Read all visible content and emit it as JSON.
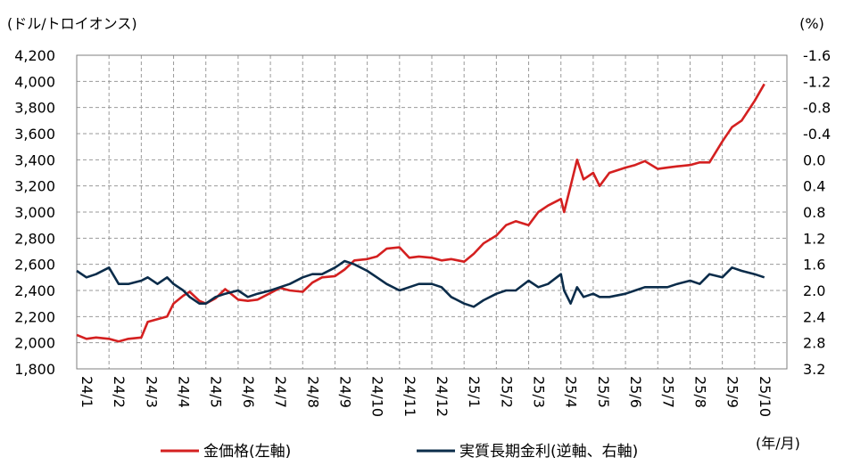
{
  "chart_data": {
    "type": "line",
    "left_unit": "(ドル/トロイオンス)",
    "right_unit": "(%)",
    "x_unit": "(年/月)",
    "x_tick_labels": [
      "24/1",
      "24/2",
      "24/3",
      "24/4",
      "24/5",
      "24/6",
      "24/7",
      "24/8",
      "24/9",
      "24/10",
      "24/11",
      "24/12",
      "25/1",
      "25/2",
      "25/3",
      "25/4",
      "25/5",
      "25/6",
      "25/7",
      "25/8",
      "25/9",
      "25/10"
    ],
    "y_left": {
      "ticks": [
        "1,800",
        "2,000",
        "2,200",
        "2,400",
        "2,600",
        "2,800",
        "3,000",
        "3,200",
        "3,400",
        "3,600",
        "3,800",
        "4,000",
        "4,200"
      ],
      "min": 1800,
      "max": 4200
    },
    "y_right": {
      "ticks": [
        "-1.6",
        "-1.2",
        "-0.8",
        "-0.4",
        "0.0",
        "0.4",
        "0.8",
        "1.2",
        "1.6",
        "2.0",
        "2.4",
        "2.8",
        "3.2"
      ],
      "min": -1.6,
      "max": 3.2,
      "inverted": true
    },
    "grid": true,
    "legend_position": "bottom",
    "series": [
      {
        "name": "金価格(左軸)",
        "axis": "left",
        "color": "#d42020",
        "points": [
          [
            "24/1",
            2060
          ],
          [
            "24/1.3",
            2030
          ],
          [
            "24/1.6",
            2040
          ],
          [
            "24/2",
            2030
          ],
          [
            "24/2.3",
            2010
          ],
          [
            "24/2.6",
            2030
          ],
          [
            "24/3",
            2040
          ],
          [
            "24/3.2",
            2160
          ],
          [
            "24/3.5",
            2180
          ],
          [
            "24/3.8",
            2200
          ],
          [
            "24/4",
            2300
          ],
          [
            "24/4.3",
            2360
          ],
          [
            "24/4.5",
            2390
          ],
          [
            "24/4.8",
            2320
          ],
          [
            "24/5",
            2300
          ],
          [
            "24/5.3",
            2340
          ],
          [
            "24/5.6",
            2410
          ],
          [
            "24/6",
            2330
          ],
          [
            "24/6.3",
            2320
          ],
          [
            "24/6.6",
            2330
          ],
          [
            "24/7",
            2380
          ],
          [
            "24/7.3",
            2420
          ],
          [
            "24/7.6",
            2400
          ],
          [
            "24/8",
            2390
          ],
          [
            "24/8.3",
            2460
          ],
          [
            "24/8.6",
            2500
          ],
          [
            "24/9",
            2510
          ],
          [
            "24/9.3",
            2560
          ],
          [
            "24/9.6",
            2630
          ],
          [
            "24/10",
            2640
          ],
          [
            "24/10.3",
            2660
          ],
          [
            "24/10.6",
            2720
          ],
          [
            "24/11",
            2730
          ],
          [
            "24/11.3",
            2650
          ],
          [
            "24/11.6",
            2660
          ],
          [
            "24/12",
            2650
          ],
          [
            "24/12.3",
            2630
          ],
          [
            "24/12.6",
            2640
          ],
          [
            "25/1",
            2620
          ],
          [
            "25/1.3",
            2680
          ],
          [
            "25/1.6",
            2760
          ],
          [
            "25/2",
            2820
          ],
          [
            "25/2.3",
            2900
          ],
          [
            "25/2.6",
            2930
          ],
          [
            "25/3",
            2900
          ],
          [
            "25/3.3",
            3000
          ],
          [
            "25/3.6",
            3050
          ],
          [
            "25/4",
            3100
          ],
          [
            "25/4.1",
            3000
          ],
          [
            "25/4.3",
            3200
          ],
          [
            "25/4.5",
            3400
          ],
          [
            "25/4.7",
            3250
          ],
          [
            "25/5",
            3300
          ],
          [
            "25/5.2",
            3200
          ],
          [
            "25/5.5",
            3300
          ],
          [
            "25/6",
            3340
          ],
          [
            "25/6.3",
            3360
          ],
          [
            "25/6.6",
            3390
          ],
          [
            "25/7",
            3330
          ],
          [
            "25/7.3",
            3340
          ],
          [
            "25/7.6",
            3350
          ],
          [
            "25/8",
            3360
          ],
          [
            "25/8.3",
            3380
          ],
          [
            "25/8.6",
            3380
          ],
          [
            "25/9",
            3540
          ],
          [
            "25/9.3",
            3650
          ],
          [
            "25/9.6",
            3700
          ],
          [
            "25/10",
            3850
          ],
          [
            "25/10.3",
            3980
          ]
        ]
      },
      {
        "name": "実質長期金利(逆軸、右軸)",
        "axis": "right",
        "color": "#0b2c4a",
        "points": [
          [
            "24/1",
            1.7
          ],
          [
            "24/1.3",
            1.8
          ],
          [
            "24/1.6",
            1.75
          ],
          [
            "24/2",
            1.65
          ],
          [
            "24/2.3",
            1.9
          ],
          [
            "24/2.6",
            1.9
          ],
          [
            "24/3",
            1.85
          ],
          [
            "24/3.2",
            1.8
          ],
          [
            "24/3.5",
            1.9
          ],
          [
            "24/3.8",
            1.8
          ],
          [
            "24/4",
            1.9
          ],
          [
            "24/4.3",
            2.0
          ],
          [
            "24/4.5",
            2.1
          ],
          [
            "24/4.8",
            2.2
          ],
          [
            "24/5",
            2.2
          ],
          [
            "24/5.3",
            2.1
          ],
          [
            "24/5.6",
            2.05
          ],
          [
            "24/6",
            2.0
          ],
          [
            "24/6.3",
            2.1
          ],
          [
            "24/6.6",
            2.05
          ],
          [
            "24/7",
            2.0
          ],
          [
            "24/7.3",
            1.95
          ],
          [
            "24/7.6",
            1.9
          ],
          [
            "24/8",
            1.8
          ],
          [
            "24/8.3",
            1.75
          ],
          [
            "24/8.6",
            1.75
          ],
          [
            "24/9",
            1.65
          ],
          [
            "24/9.3",
            1.55
          ],
          [
            "24/9.6",
            1.6
          ],
          [
            "24/10",
            1.7
          ],
          [
            "24/10.3",
            1.8
          ],
          [
            "24/10.6",
            1.9
          ],
          [
            "24/11",
            2.0
          ],
          [
            "24/11.3",
            1.95
          ],
          [
            "24/11.6",
            1.9
          ],
          [
            "24/12",
            1.9
          ],
          [
            "24/12.3",
            1.95
          ],
          [
            "24/12.6",
            2.1
          ],
          [
            "25/1",
            2.2
          ],
          [
            "25/1.3",
            2.25
          ],
          [
            "25/1.6",
            2.15
          ],
          [
            "25/2",
            2.05
          ],
          [
            "25/2.3",
            2.0
          ],
          [
            "25/2.6",
            2.0
          ],
          [
            "25/3",
            1.85
          ],
          [
            "25/3.3",
            1.95
          ],
          [
            "25/3.6",
            1.9
          ],
          [
            "25/4",
            1.75
          ],
          [
            "25/4.1",
            2.0
          ],
          [
            "25/4.3",
            2.2
          ],
          [
            "25/4.5",
            1.95
          ],
          [
            "25/4.7",
            2.1
          ],
          [
            "25/5",
            2.05
          ],
          [
            "25/5.2",
            2.1
          ],
          [
            "25/5.5",
            2.1
          ],
          [
            "25/6",
            2.05
          ],
          [
            "25/6.3",
            2.0
          ],
          [
            "25/6.6",
            1.95
          ],
          [
            "25/7",
            1.95
          ],
          [
            "25/7.3",
            1.95
          ],
          [
            "25/7.6",
            1.9
          ],
          [
            "25/8",
            1.85
          ],
          [
            "25/8.3",
            1.9
          ],
          [
            "25/8.6",
            1.75
          ],
          [
            "25/9",
            1.8
          ],
          [
            "25/9.3",
            1.65
          ],
          [
            "25/9.6",
            1.7
          ],
          [
            "25/10",
            1.75
          ],
          [
            "25/10.3",
            1.8
          ]
        ]
      }
    ]
  }
}
